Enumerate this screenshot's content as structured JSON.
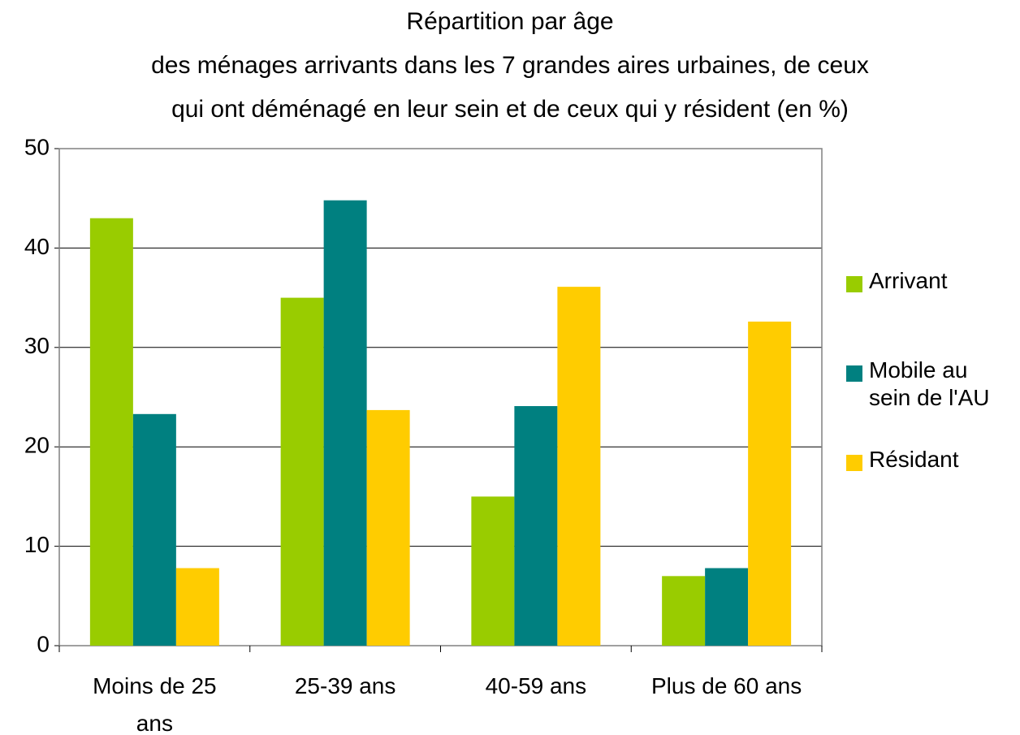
{
  "chart_data": {
    "type": "bar",
    "title": [
      "Répartition par âge",
      "des ménages arrivants dans les 7 grandes aires urbaines, de ceux",
      "qui ont déménagé en leur sein et de ceux qui y résident (en %)"
    ],
    "categories": [
      "Moins de 25 ans",
      "25-39 ans",
      "40-59 ans",
      "Plus de 60 ans"
    ],
    "series": [
      {
        "name": "Arrivant",
        "color": "#99cc00",
        "values": [
          43,
          35,
          15,
          7
        ]
      },
      {
        "name": "Mobile au sein de l'AU",
        "color": "#008080",
        "values": [
          23.3,
          44.8,
          24.1,
          7.8
        ]
      },
      {
        "name": "Résidant",
        "color": "#ffcc00",
        "values": [
          7.8,
          23.7,
          36.1,
          32.6
        ]
      }
    ],
    "ylim": [
      0,
      50
    ],
    "yticks": [
      0,
      10,
      20,
      30,
      40,
      50
    ],
    "grid": true,
    "legend": "right"
  }
}
